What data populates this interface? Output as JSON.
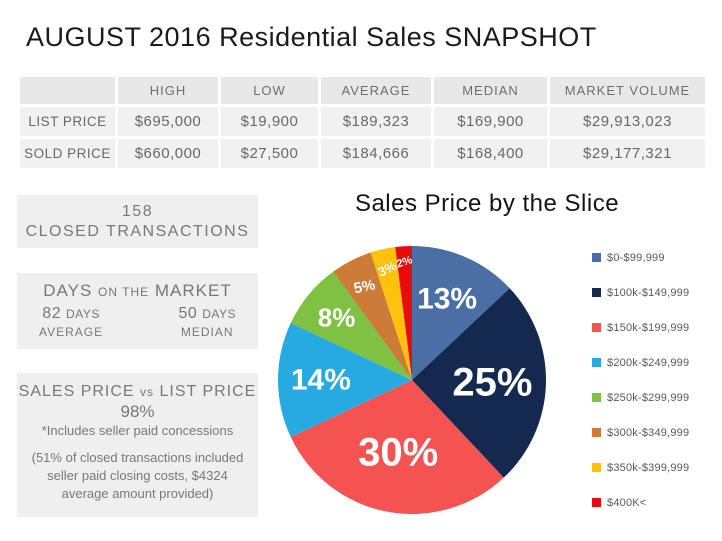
{
  "title": "AUGUST 2016 Residential Sales SNAPSHOT",
  "table": {
    "headers": [
      "",
      "HIGH",
      "LOW",
      "AVERAGE",
      "MEDIAN",
      "MARKET VOLUME"
    ],
    "rows": [
      {
        "label": "LIST PRICE",
        "values": [
          "$695,000",
          "$19,900",
          "$189,323",
          "$169,900",
          "$29,913,023"
        ]
      },
      {
        "label": "SOLD PRICE",
        "values": [
          "$660,000",
          "$27,500",
          "$184,666",
          "$168,400",
          "$29,177,321"
        ]
      }
    ]
  },
  "stats": {
    "closed_transactions": {
      "count": "158",
      "label": "CLOSED TRANSACTIONS"
    },
    "days_on_market": {
      "title_big1": "DAYS",
      "title_small": "ON THE",
      "title_big2": "MARKET",
      "average_value": "82",
      "average_unit": "DAYS",
      "average_label": "AVERAGE",
      "median_value": "50",
      "median_unit": "DAYS",
      "median_label": "MEDIAN"
    },
    "sales_vs_list": {
      "title_left": "SALES PRICE",
      "title_vs": "vs",
      "title_right": "LIST PRICE",
      "percent": "98%",
      "note": "*Includes seller paid concessions",
      "detail": "(51% of closed transactions included seller paid closing costs, $4324 average amount provided)"
    }
  },
  "chart_data": [
    {
      "type": "pie",
      "title": "Sales Price by the Slice",
      "categories": [
        "$0-$99,999",
        "$100k-$149,999",
        "$150k-$199,999",
        "$200k-$249,999",
        "$250k-$299,999",
        "$300k-$349,999",
        "$350k-$399,999",
        "$400K<"
      ],
      "values": [
        13,
        25,
        30,
        14,
        8,
        5,
        3,
        2
      ],
      "unit": "%",
      "colors": [
        "#4a6fa5",
        "#13294f",
        "#f45352",
        "#27aae1",
        "#7ec143",
        "#cc7b38",
        "#fdc10e",
        "#e90c0c"
      ],
      "label_color": "#ffffff",
      "legend_position": "right",
      "start_angle": 0,
      "direction": "clockwise"
    },
    {
      "type": "table",
      "columns": [
        "",
        "HIGH",
        "LOW",
        "AVERAGE",
        "MEDIAN",
        "MARKET VOLUME"
      ],
      "rows": [
        [
          "LIST PRICE",
          "$695,000",
          "$19,900",
          "$189,323",
          "$169,900",
          "$29,913,023"
        ],
        [
          "SOLD PRICE",
          "$660,000",
          "$27,500",
          "$184,666",
          "$168,400",
          "$29,177,321"
        ]
      ]
    }
  ]
}
